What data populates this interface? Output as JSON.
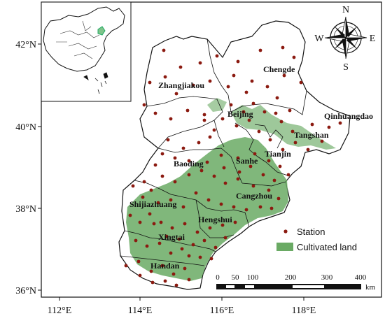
{
  "axes": {
    "lat_ticks": [
      "42°N",
      "40°N",
      "38°N",
      "36°N"
    ],
    "lon_ticks": [
      "112°E",
      "114°E",
      "116°E",
      "118°E"
    ]
  },
  "compass": {
    "n": "N",
    "s": "S",
    "e": "E",
    "w": "W"
  },
  "cities": {
    "chengde": "Chengde",
    "zhangjiakou": "Zhangjiakou",
    "beijing": "Beijing",
    "qinhuangdao": "Qinhuangdao",
    "tangshan": "Tangshan",
    "tianjin": "Tianjin",
    "baoding": "Baoding",
    "sanhe": "Sanhe",
    "cangzhou": "Cangzhou",
    "shijiazhuang": "Shijiazhuang",
    "hengshui": "Hengshui",
    "xingtai": "Xingtai",
    "handan": "Handan"
  },
  "legend": {
    "station": "Station",
    "cultivated": "Cultivated land"
  },
  "scale": {
    "labels": [
      "0",
      "50",
      "100",
      "200",
      "300",
      "400"
    ],
    "unit": "km"
  },
  "colors": {
    "station": "#8b1a10",
    "cultivated": "#6aaa64",
    "boundary": "#111111"
  }
}
